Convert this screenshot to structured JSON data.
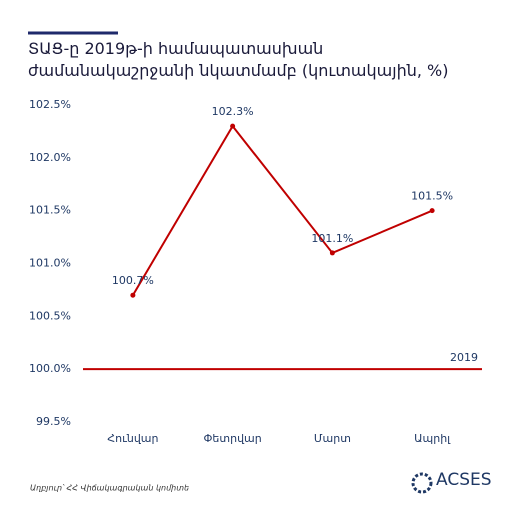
{
  "chart_data": {
    "type": "line",
    "title": "ՏԱՑ-ը 2019թ-ի համապատասխան ժամանակաշրջանի նկատմամբ (կուտակային, %)",
    "categories": [
      "Հունվար",
      "Փետրվար",
      "Մարտ",
      "Ապրիլ"
    ],
    "values": [
      100.7,
      102.3,
      101.1,
      101.5
    ],
    "value_labels": [
      "100.7%",
      "102.3%",
      "101.1%",
      "101.5%"
    ],
    "color": "#c00000",
    "reference_line": {
      "value": 100,
      "label": "2019"
    },
    "ylim": [
      99.5,
      102.5
    ],
    "yticks": [
      {
        "value": 99.5,
        "label": "99.5%"
      },
      {
        "value": 100,
        "label": "100.0%"
      },
      {
        "value": 100.5,
        "label": "100.5%"
      },
      {
        "value": 101,
        "label": "101.0%"
      },
      {
        "value": 101.5,
        "label": "101.5%"
      },
      {
        "value": 102,
        "label": "102.0%"
      },
      {
        "value": 102.5,
        "label": "102.5%"
      }
    ],
    "grid": false,
    "source": "Աղբյուր՝ ՀՀ Վիճակագրական կոմիտե",
    "logo": "ACSES"
  }
}
